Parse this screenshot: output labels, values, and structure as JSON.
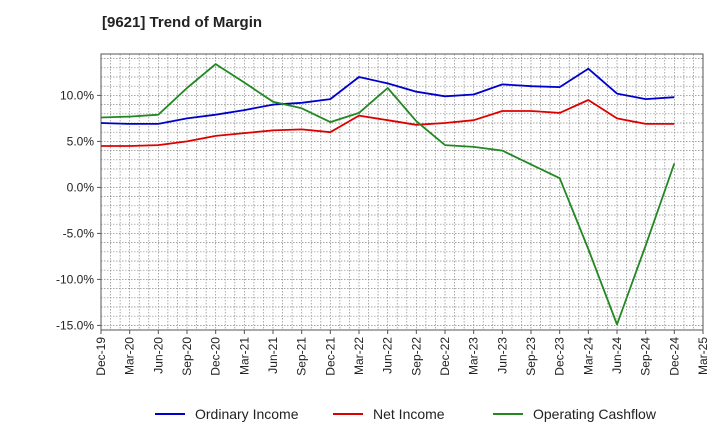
{
  "chart_data": {
    "type": "line",
    "title": "[9621]  Trend of Margin",
    "xlabel": "",
    "ylabel": "",
    "categories": [
      "Dec-19",
      "Mar-20",
      "Jun-20",
      "Sep-20",
      "Dec-20",
      "Mar-21",
      "Jun-21",
      "Sep-21",
      "Dec-21",
      "Mar-22",
      "Jun-22",
      "Sep-22",
      "Dec-22",
      "Mar-23",
      "Jun-23",
      "Sep-23",
      "Dec-23",
      "Mar-24",
      "Jun-24",
      "Sep-24",
      "Dec-24",
      "Mar-25"
    ],
    "ylim": [
      -15.5,
      14.5
    ],
    "yticks": [
      -15,
      -10,
      -5,
      0,
      5,
      10
    ],
    "ytick_labels": [
      "-15.0%",
      "-10.0%",
      "-5.0%",
      "0.0%",
      "5.0%",
      "10.0%"
    ],
    "grid": true,
    "legend_position": "bottom",
    "series": [
      {
        "name": "Ordinary Income",
        "color": "#0000cc",
        "values": [
          7.0,
          6.9,
          6.9,
          7.5,
          7.9,
          8.4,
          9.0,
          9.2,
          9.6,
          12.0,
          11.3,
          10.4,
          9.9,
          10.1,
          11.2,
          11.0,
          10.9,
          12.9,
          10.2,
          9.6,
          9.8,
          null
        ]
      },
      {
        "name": "Net Income",
        "color": "#dd0000",
        "values": [
          4.5,
          4.5,
          4.6,
          5.0,
          5.6,
          5.9,
          6.2,
          6.3,
          6.0,
          7.8,
          7.3,
          6.8,
          7.0,
          7.3,
          8.3,
          8.3,
          8.1,
          9.5,
          7.5,
          6.9,
          6.9,
          null
        ]
      },
      {
        "name": "Operating Cashflow",
        "color": "#228822",
        "values": [
          7.6,
          7.7,
          7.9,
          10.8,
          13.4,
          11.4,
          9.3,
          8.6,
          7.1,
          8.1,
          10.8,
          7.2,
          4.6,
          4.4,
          4.0,
          2.5,
          1.0,
          -6.7,
          -14.9,
          -6.3,
          2.6,
          null
        ]
      }
    ]
  }
}
